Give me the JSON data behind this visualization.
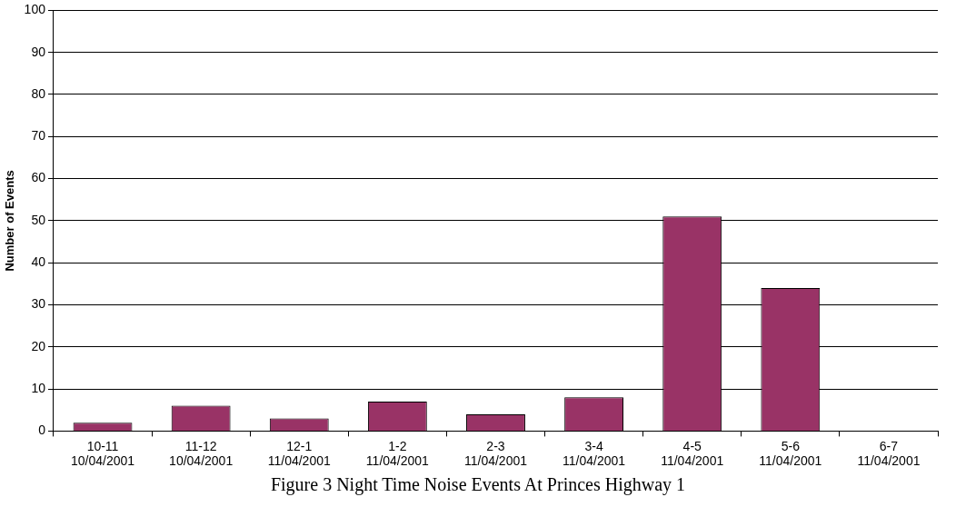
{
  "chart_data": {
    "type": "bar",
    "ylabel": "Number of Events",
    "categories": [
      "10-11\n10/04/2001",
      "11-12\n10/04/2001",
      "12-1\n11/04/2001",
      "1-2\n11/04/2001",
      "2-3\n11/04/2001",
      "3-4\n11/04/2001",
      "4-5\n11/04/2001",
      "5-6\n11/04/2001",
      "6-7\n11/04/2001"
    ],
    "values": [
      2,
      6,
      3,
      7,
      4,
      8,
      51,
      34,
      0
    ],
    "color": "#993366",
    "ylim": [
      0,
      100
    ],
    "yticks": [
      0,
      10,
      20,
      30,
      40,
      50,
      60,
      70,
      80,
      90,
      100
    ],
    "grid": "y",
    "legend": false,
    "annotations": [
      "Figure 3 Night Time Noise Events At Princes Highway 1"
    ]
  }
}
